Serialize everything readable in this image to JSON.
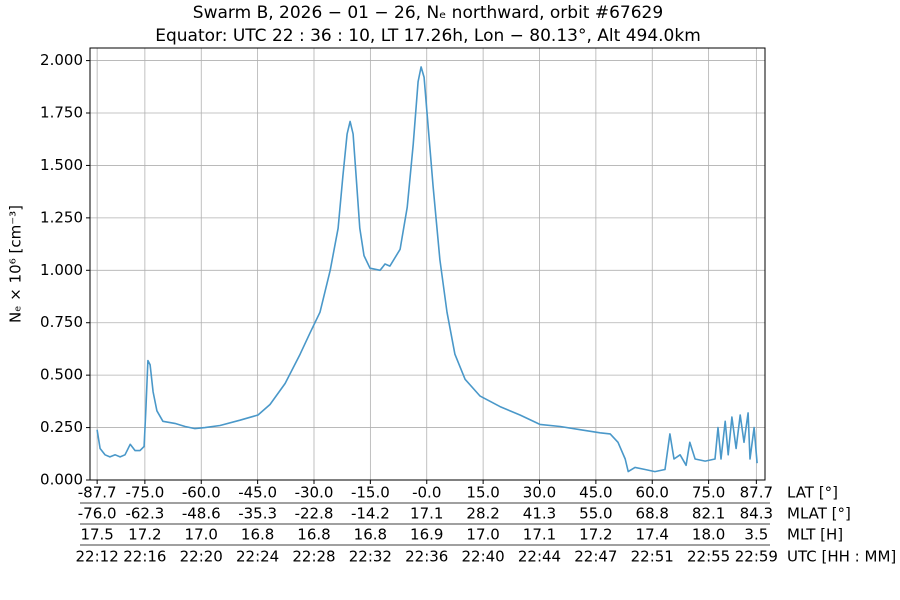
{
  "chart_data": {
    "type": "line",
    "title": "Swarm B,  2026 − 01 − 26,  Nₑ northward,  orbit #67629",
    "subtitle": "Equator:  UTC 22 : 36 : 10,  LT 17.26h,  Lon  − 80.13°,  Alt 494.0km",
    "ylabel": "Nₑ × 10⁶ [cm⁻³]",
    "xlabel": "LAT [°]",
    "grid": true,
    "color": "#4a98c9",
    "xlim": [
      -89.6,
      90
    ],
    "ylim": [
      0,
      2.06
    ],
    "yticks": [
      {
        "value": 0,
        "label": "0.000"
      },
      {
        "value": 0.25,
        "label": "0.250"
      },
      {
        "value": 0.5,
        "label": "0.500"
      },
      {
        "value": 0.75,
        "label": "0.750"
      },
      {
        "value": 1,
        "label": "1.000"
      },
      {
        "value": 1.25,
        "label": "1.250"
      },
      {
        "value": 1.5,
        "label": "1.500"
      },
      {
        "value": 1.75,
        "label": "1.750"
      },
      {
        "value": 2,
        "label": "2.000"
      }
    ],
    "xticks": [
      -87.7,
      {
        "value": -75,
        "label": "-75.0"
      },
      {
        "value": -60,
        "label": "-60.0"
      },
      {
        "value": -45,
        "label": "-45.0"
      },
      {
        "value": -30,
        "label": "-30.0"
      },
      {
        "value": -15,
        "label": "-15.0"
      },
      {
        "value": 0,
        "label": "-0.0"
      },
      {
        "value": 15,
        "label": "15.0"
      },
      {
        "value": 30,
        "label": "30.0"
      },
      {
        "value": 45,
        "label": "45.0"
      },
      {
        "value": 60,
        "label": "60.0"
      },
      {
        "value": 75,
        "label": "75.0"
      },
      87.7
    ],
    "xtick_rows": [
      {
        "name": "MLAT [°]",
        "labels": [
          "-76.0",
          "-62.3",
          "-48.6",
          "-35.3",
          "-22.8",
          "-14.2",
          "17.1",
          "28.2",
          "41.3",
          "55.0",
          "68.8",
          "82.1",
          "84.3"
        ]
      },
      {
        "name": "MLT [H]",
        "labels": [
          "17.5",
          "17.2",
          "17.0",
          "16.8",
          "16.8",
          "16.8",
          "16.9",
          "17.0",
          "17.1",
          "17.2",
          "17.4",
          "18.0",
          "3.5"
        ]
      },
      {
        "name": "UTC [HH : MM]",
        "labels": [
          "22:12",
          "22:16",
          "22:20",
          "22:24",
          "22:28",
          "22:32",
          "22:36",
          "22:40",
          "22:44",
          "22:47",
          "22:51",
          "22:55",
          "22:59"
        ]
      }
    ],
    "x": [
      -87.7,
      -86.9,
      -85.6,
      -84.3,
      -82.9,
      -81.6,
      -80.3,
      -78.9,
      -77.6,
      -76.3,
      -75.2,
      -74.7,
      -74.2,
      -73.6,
      -72.8,
      -71.8,
      -70.2,
      -67.0,
      -64.3,
      -61.7,
      -59.0,
      -55.0,
      -49.7,
      -44.9,
      -41.7,
      -37.7,
      -33.7,
      -31.1,
      -28.4,
      -25.7,
      -23.6,
      -22.3,
      -21.2,
      -20.4,
      -19.6,
      -18.8,
      -17.8,
      -16.7,
      -15.1,
      -12.4,
      -11.1,
      -9.8,
      -7.1,
      -5.2,
      -3.6,
      -2.3,
      -1.5,
      -0.7,
      0.3,
      1.7,
      3.5,
      5.4,
      7.5,
      10.2,
      14.2,
      19.5,
      24.8,
      30.1,
      35.5,
      40.8,
      46.1,
      48.8,
      50.9,
      52.8,
      53.6,
      55.4,
      58.1,
      60.7,
      63.4,
      64.7,
      65.8,
      67.4,
      69.0,
      70.0,
      71.4,
      74.1,
      76.7,
      77.5,
      78.3,
      79.4,
      80.2,
      81.2,
      82.3,
      83.4,
      84.4,
      85.5,
      86.0,
      87.1,
      87.9
    ],
    "values": [
      0.24,
      0.15,
      0.12,
      0.11,
      0.12,
      0.11,
      0.12,
      0.17,
      0.14,
      0.14,
      0.16,
      0.35,
      0.57,
      0.55,
      0.42,
      0.33,
      0.28,
      0.27,
      0.255,
      0.245,
      0.25,
      0.26,
      0.285,
      0.31,
      0.36,
      0.46,
      0.6,
      0.7,
      0.8,
      1.0,
      1.2,
      1.45,
      1.65,
      1.71,
      1.65,
      1.45,
      1.2,
      1.07,
      1.01,
      1.0,
      1.03,
      1.02,
      1.1,
      1.3,
      1.6,
      1.9,
      1.97,
      1.92,
      1.7,
      1.4,
      1.05,
      0.8,
      0.6,
      0.48,
      0.4,
      0.35,
      0.31,
      0.265,
      0.255,
      0.24,
      0.225,
      0.22,
      0.18,
      0.1,
      0.04,
      0.06,
      0.05,
      0.04,
      0.05,
      0.22,
      0.1,
      0.12,
      0.07,
      0.18,
      0.1,
      0.09,
      0.1,
      0.25,
      0.1,
      0.28,
      0.12,
      0.3,
      0.15,
      0.31,
      0.18,
      0.32,
      0.1,
      0.25,
      0.08
    ]
  }
}
